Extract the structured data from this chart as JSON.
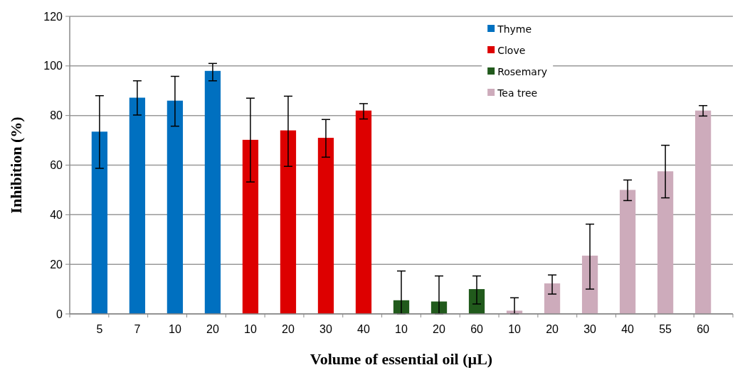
{
  "chart_data": {
    "type": "bar",
    "xlabel": "Volume of essential oil (µL)",
    "ylabel": "Inhibition  (%)",
    "categories": [
      "5",
      "7",
      "10",
      "20",
      "10",
      "20",
      "30",
      "40",
      "10",
      "20",
      "60",
      "10",
      "20",
      "30",
      "40",
      "55",
      "60"
    ],
    "series": [
      {
        "name": "Thyme",
        "color": "#0070c0",
        "values": [
          73.5,
          87.2,
          86,
          98,
          null,
          null,
          null,
          null,
          null,
          null,
          null,
          null,
          null,
          null,
          null,
          null,
          null
        ],
        "errors": [
          [
            58.7,
            88
          ],
          [
            80.2,
            94
          ],
          [
            75.7,
            95.8
          ],
          [
            94,
            101
          ],
          null,
          null,
          null,
          null,
          null,
          null,
          null,
          null,
          null,
          null,
          null,
          null,
          null
        ]
      },
      {
        "name": "Clove",
        "color": "#dd0000",
        "values": [
          null,
          null,
          null,
          null,
          70.2,
          74,
          71,
          82,
          null,
          null,
          null,
          null,
          null,
          null,
          null,
          null,
          null
        ],
        "errors": [
          null,
          null,
          null,
          null,
          [
            53.2,
            87
          ],
          [
            59.5,
            87.8
          ],
          [
            63.2,
            78.4
          ],
          [
            78.6,
            84.8
          ],
          null,
          null,
          null,
          null,
          null,
          null,
          null,
          null,
          null
        ]
      },
      {
        "name": "Rosemary",
        "color": "#215a1c",
        "values": [
          null,
          null,
          null,
          null,
          null,
          null,
          null,
          null,
          5.5,
          5,
          10,
          null,
          null,
          null,
          null,
          null,
          null
        ],
        "errors": [
          null,
          null,
          null,
          null,
          null,
          null,
          null,
          null,
          [
            0,
            17.3
          ],
          [
            0,
            15.3
          ],
          [
            4,
            15.3
          ],
          null,
          null,
          null,
          null,
          null,
          null
        ]
      },
      {
        "name": "Tea tree",
        "color": "#cdabbb",
        "values": [
          null,
          null,
          null,
          null,
          null,
          null,
          null,
          null,
          null,
          null,
          null,
          1.3,
          12.3,
          23.5,
          50,
          57.5,
          82
        ],
        "errors": [
          null,
          null,
          null,
          null,
          null,
          null,
          null,
          null,
          null,
          null,
          null,
          [
            0,
            6.5
          ],
          [
            8,
            15.7
          ],
          [
            10,
            36.2
          ],
          [
            45.7,
            54
          ],
          [
            46.8,
            68
          ],
          [
            79.8,
            84
          ]
        ]
      }
    ],
    "ylim": [
      0,
      120
    ],
    "yticks": [
      0,
      20,
      40,
      60,
      80,
      100,
      120
    ],
    "grid": "y",
    "legend": "top"
  }
}
